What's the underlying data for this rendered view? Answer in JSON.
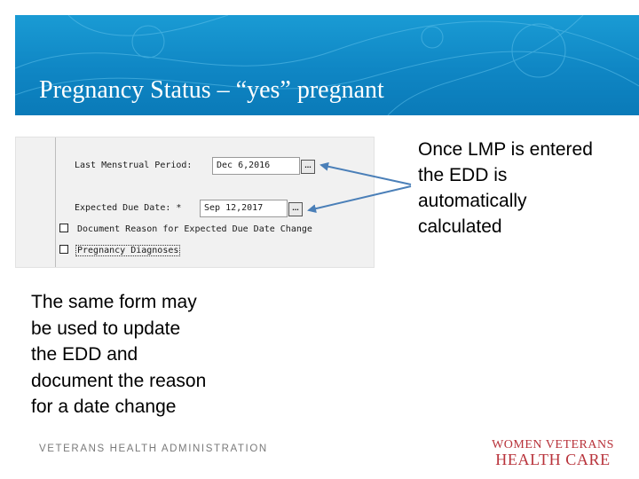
{
  "slide": {
    "title": "Pregnancy Status – “yes” pregnant"
  },
  "form": {
    "lmp_label": "Last Menstrual Period:",
    "lmp_value": "Dec 6,2016",
    "lmp_button": "...",
    "edd_label": "Expected Due Date: *",
    "edd_value": "Sep 12,2017",
    "edd_button": "...",
    "checkbox_reason_label": "Document Reason for Expected Due Date Change",
    "checkbox_reason_checked": false,
    "checkbox_diagnoses_label": "Pregnancy Diagnoses",
    "checkbox_diagnoses_checked": false
  },
  "callout": {
    "lines": [
      "Once LMP is entered",
      "the EDD is",
      "automatically",
      "calculated"
    ]
  },
  "note": {
    "lines": [
      "The same form may",
      "be used to update",
      "the EDD and",
      "document the reason",
      "for a date change"
    ]
  },
  "footer": {
    "left_text": "VETERANS HEALTH ADMINISTRATION",
    "logo_line1": "WOMEN VETERANS",
    "logo_line2": "HEALTH CARE"
  },
  "colors": {
    "banner": "#1293cf",
    "arrow": "#4a7fb8",
    "logo": "#b8323a"
  }
}
